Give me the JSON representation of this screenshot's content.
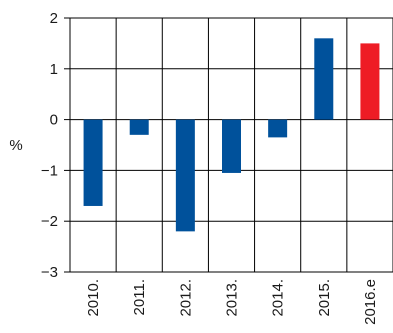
{
  "chart_data": {
    "type": "bar",
    "categories": [
      "2010.",
      "2011.",
      "2012.",
      "2013.",
      "2014.",
      "2015.",
      "2016.e"
    ],
    "values": [
      -1.7,
      -0.3,
      -2.2,
      -1.05,
      -0.35,
      1.6,
      1.5
    ],
    "bar_colors": [
      "#00519b",
      "#00519b",
      "#00519b",
      "#00519b",
      "#00519b",
      "#00519b",
      "#ee1c25"
    ],
    "yticks": [
      "2",
      "1",
      "0",
      "−1",
      "−2",
      "−3"
    ],
    "ylabel": "%",
    "ylim": [
      -3,
      2
    ],
    "grid": true
  }
}
